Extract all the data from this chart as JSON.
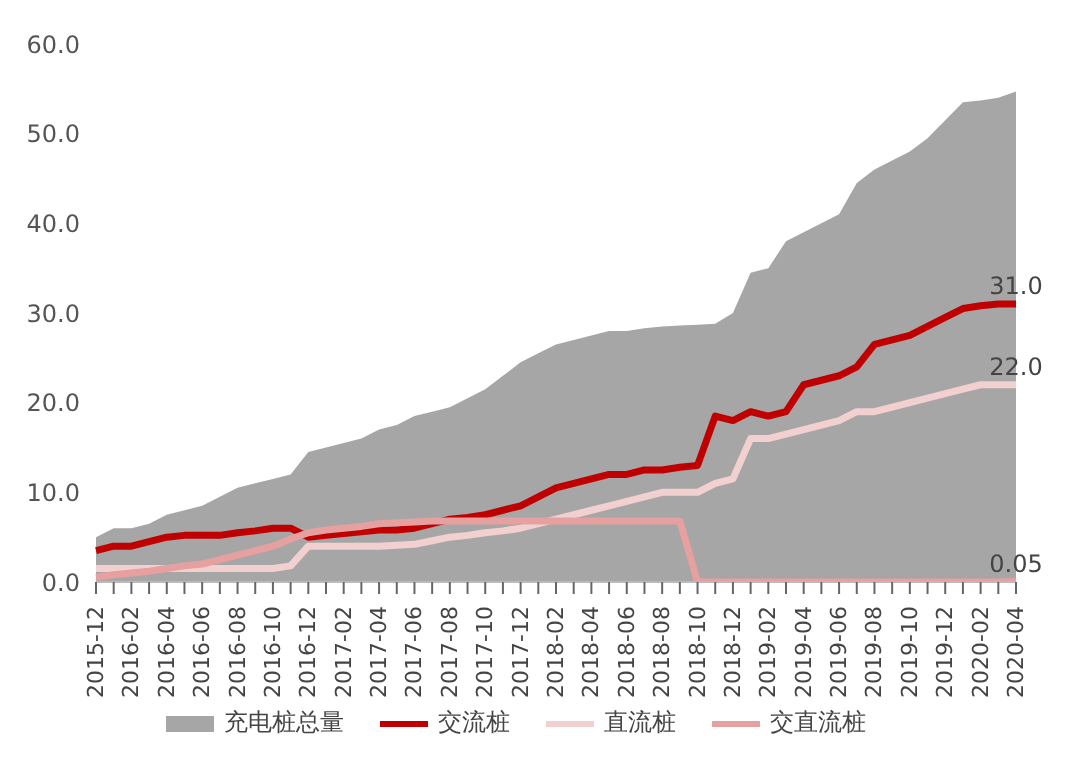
{
  "chart_data": {
    "type": "line",
    "categories": [
      "2015-12",
      null,
      "2016-02",
      null,
      "2016-04",
      null,
      "2016-06",
      null,
      "2016-08",
      null,
      "2016-10",
      null,
      "2016-12",
      null,
      "2017-02",
      null,
      "2017-04",
      null,
      "2017-06",
      null,
      "2017-08",
      null,
      "2017-10",
      null,
      "2017-12",
      null,
      "2018-02",
      null,
      "2018-04",
      null,
      "2018-06",
      null,
      "2018-08",
      null,
      "2018-10",
      null,
      "2018-12",
      null,
      "2019-02",
      null,
      "2019-04",
      null,
      "2019-06",
      null,
      "2019-08",
      null,
      "2019-10",
      null,
      "2019-12",
      null,
      "2020-02",
      null,
      "2020-04"
    ],
    "series": [
      {
        "name": "充电桩总量",
        "type": "area",
        "color": "#a6a6a6",
        "values": [
          5.0,
          6.0,
          6.0,
          6.5,
          7.5,
          8.0,
          8.5,
          9.5,
          10.5,
          11.0,
          11.5,
          12.0,
          14.5,
          15.0,
          15.5,
          16.0,
          17.0,
          17.5,
          18.5,
          19.0,
          19.5,
          20.5,
          21.5,
          23.0,
          24.5,
          25.5,
          26.5,
          27.0,
          27.5,
          28.0,
          28.0,
          28.3,
          28.5,
          28.6,
          28.7,
          28.8,
          30.0,
          34.5,
          35.0,
          38.0,
          39.0,
          40.0,
          41.0,
          44.5,
          46.0,
          47.0,
          48.0,
          49.5,
          51.5,
          53.5,
          53.7,
          54.0,
          54.7
        ]
      },
      {
        "name": "交流桩",
        "color": "#c00000",
        "values": [
          3.5,
          4.0,
          4.0,
          4.5,
          5.0,
          5.2,
          5.2,
          5.2,
          5.5,
          5.7,
          6.0,
          6.0,
          5.0,
          5.2,
          5.4,
          5.6,
          5.8,
          5.8,
          6.0,
          6.5,
          7.0,
          7.2,
          7.5,
          8.0,
          8.5,
          9.5,
          10.5,
          11.0,
          11.5,
          12.0,
          12.0,
          12.5,
          12.5,
          12.8,
          13.0,
          18.5,
          18.0,
          19.0,
          18.5,
          19.0,
          22.0,
          22.5,
          23.0,
          24.0,
          26.5,
          27.0,
          27.5,
          28.5,
          29.5,
          30.5,
          30.8,
          31.0,
          31.0
        ],
        "value_labels": [
          null,
          null,
          null,
          null,
          null,
          null,
          null,
          null,
          null,
          null,
          null,
          null,
          null,
          null,
          null,
          null,
          null,
          null,
          null,
          null,
          null,
          null,
          null,
          null,
          null,
          null,
          null,
          null,
          null,
          null,
          null,
          null,
          null,
          null,
          null,
          null,
          null,
          null,
          null,
          null,
          null,
          null,
          null,
          null,
          null,
          null,
          null,
          null,
          null,
          null,
          null,
          null,
          "31.0"
        ]
      },
      {
        "name": "直流桩",
        "color": "#f2d0d0",
        "values": [
          1.5,
          1.5,
          1.5,
          1.5,
          1.5,
          1.5,
          1.5,
          1.5,
          1.5,
          1.5,
          1.5,
          1.8,
          4.0,
          4.0,
          4.0,
          4.0,
          4.0,
          4.1,
          4.2,
          4.6,
          5.0,
          5.2,
          5.5,
          5.7,
          6.0,
          6.5,
          7.0,
          7.5,
          8.0,
          8.5,
          9.0,
          9.5,
          10.0,
          10.0,
          10.0,
          11.0,
          11.5,
          16.0,
          16.0,
          16.5,
          17.0,
          17.5,
          18.0,
          19.0,
          19.0,
          19.5,
          20.0,
          20.5,
          21.0,
          21.5,
          22.0,
          22.0,
          22.0
        ],
        "value_labels": [
          null,
          null,
          null,
          null,
          null,
          null,
          null,
          null,
          null,
          null,
          null,
          null,
          null,
          null,
          null,
          null,
          null,
          null,
          null,
          null,
          null,
          null,
          null,
          null,
          null,
          null,
          null,
          null,
          null,
          null,
          null,
          null,
          null,
          null,
          null,
          null,
          null,
          null,
          null,
          null,
          null,
          null,
          null,
          null,
          null,
          null,
          null,
          null,
          null,
          null,
          null,
          null,
          "22.0"
        ]
      },
      {
        "name": "交直流桩",
        "color": "#e6a0a0",
        "values": [
          0.5,
          0.8,
          1.0,
          1.2,
          1.5,
          1.8,
          2.0,
          2.5,
          3.0,
          3.5,
          4.0,
          4.8,
          5.5,
          5.8,
          6.0,
          6.2,
          6.5,
          6.6,
          6.7,
          6.8,
          6.8,
          6.8,
          6.8,
          6.8,
          6.8,
          6.8,
          6.8,
          6.8,
          6.8,
          6.8,
          6.8,
          6.8,
          6.8,
          6.8,
          0,
          0,
          0,
          0,
          0,
          0,
          0,
          0,
          0,
          0,
          0,
          0,
          0,
          0,
          0,
          0,
          0,
          0,
          0.05
        ],
        "value_labels": [
          null,
          null,
          null,
          null,
          null,
          null,
          null,
          null,
          null,
          null,
          null,
          null,
          null,
          null,
          null,
          null,
          null,
          null,
          null,
          null,
          null,
          null,
          null,
          null,
          null,
          null,
          null,
          null,
          null,
          null,
          null,
          null,
          null,
          null,
          null,
          null,
          null,
          null,
          null,
          null,
          null,
          null,
          null,
          null,
          null,
          null,
          null,
          null,
          null,
          null,
          null,
          null,
          "0.05"
        ]
      }
    ],
    "ylim": [
      0,
      60
    ],
    "yticks": [
      {
        "value": 0,
        "label": "0.0"
      },
      {
        "value": 10,
        "label": "10.0"
      },
      {
        "value": 20,
        "label": "20.0"
      },
      {
        "value": 30,
        "label": "30.0"
      },
      {
        "value": 40,
        "label": "40.0"
      },
      {
        "value": 50,
        "label": "50.0"
      },
      {
        "value": 60,
        "label": "60.0"
      }
    ],
    "legend": "bottom"
  }
}
